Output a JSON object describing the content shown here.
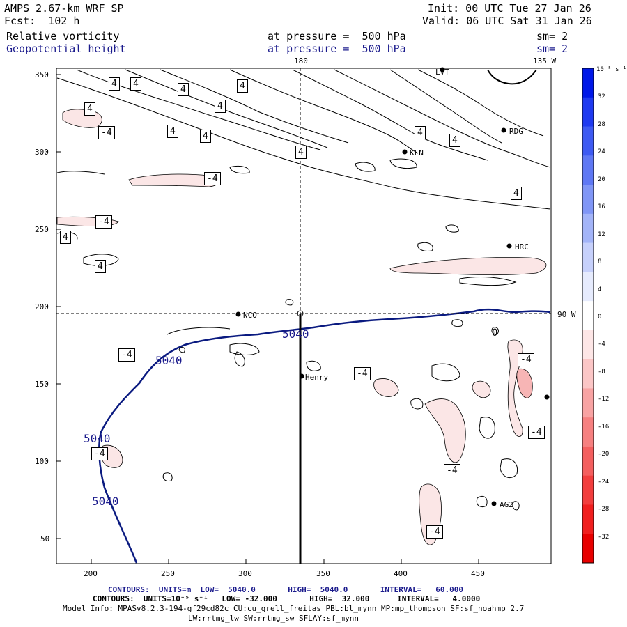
{
  "header": {
    "model": "AMPS 2.67-km WRF SP",
    "fcst": "Fcst:  102 h",
    "init": "Init: 00 UTC Tue 27 Jan 26",
    "valid": "Valid: 06 UTC Sat 31 Jan 26",
    "field1": "Relative vorticity",
    "field1_level": "at pressure =  500 hPa",
    "field1_sm": "sm= 2",
    "field2": "Geopotential height",
    "field2_level": "at pressure =  500 hPa",
    "field2_sm": "sm= 2"
  },
  "map": {
    "x_ticks": [
      "200",
      "250",
      "300",
      "350",
      "400",
      "450"
    ],
    "y_ticks": [
      "350",
      "300",
      "250",
      "200",
      "150",
      "100",
      "50"
    ],
    "lon_180": "180",
    "lon_135w": "135 W",
    "lon_90w": "90 W",
    "stations": [
      {
        "name": "LVT"
      },
      {
        "name": "RDG"
      },
      {
        "name": "KLN"
      },
      {
        "name": "HRC"
      },
      {
        "name": "NCO"
      },
      {
        "name": "Henry"
      },
      {
        "name": "AG2"
      }
    ],
    "height_contour_label": "5040",
    "vort_pos_label": "4",
    "vort_neg_label": "-4",
    "zero_label": "0"
  },
  "colorbar": {
    "unit": "10⁻⁵ s⁻¹",
    "labels": [
      "32",
      "28",
      "24",
      "20",
      "16",
      "12",
      "8",
      "4",
      "0",
      "-4",
      "-8",
      "-12",
      "-16",
      "-20",
      "-24",
      "-28",
      "-32"
    ],
    "colors": [
      "#0018e8",
      "#1f3af0",
      "#3e5af2",
      "#5f78f4",
      "#8096f6",
      "#a3b4f8",
      "#c6d0fb",
      "#e6ebfd",
      "#ffffff",
      "#fde6e6",
      "#fbc6c6",
      "#f8a3a3",
      "#f68080",
      "#f45f5f",
      "#f23e3e",
      "#f01f1f",
      "#e80000"
    ]
  },
  "footer": {
    "contours_height": "CONTOURS:  UNITS=m  LOW=  5040.0       HIGH=  5040.0       INTERVAL=   60.000",
    "contours_vort": "CONTOURS:  UNITS=10⁻⁵ s⁻¹   LOW= -32.000       HIGH=  32.000      INTERVAL=   4.0000",
    "model_info": "Model Info: MPASv8.2.3-194-gf29cd82c CU:cu_grell_freitas PBL:bl_mynn MP:mp_thompson SF:sf_noahmp 2.7",
    "model_info2": "LW:rrtmg_lw SW:rrtmg_sw SFLAY:sf_mynn"
  }
}
